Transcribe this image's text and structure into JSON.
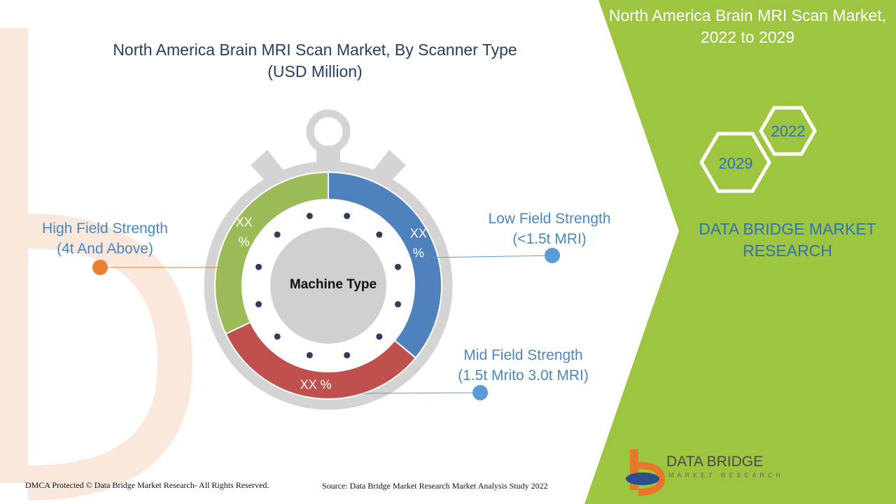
{
  "chart_title": "North America Brain MRI Scan Market, By Scanner Type (USD Million)",
  "panel": {
    "title": "North America Brain MRI Scan Market, 2022 to 2029",
    "year_start": "2022",
    "year_end": "2029",
    "brand": "DATA BRIDGE MARKET RESEARCH"
  },
  "footer": {
    "copyright": "DMCA Protected © Data Bridge Market Research- All Rights Reserved.",
    "source": "Source: Data Bridge Market Research Market Analysis Study 2022"
  },
  "logo": {
    "name": "DATA BRIDGE",
    "tagline": "MARKET RESEARCH"
  },
  "colors": {
    "panel_green": "#9dc53f",
    "low_field": "#4f81bd",
    "mid_field": "#c0504d",
    "high_field": "#9bbb59",
    "high_dot": "#ed7d31",
    "blue_dot": "#5b9bd5",
    "ring_gray": "#d4d4d4",
    "hub_gray": "#d0d0d0"
  },
  "chart_data": {
    "type": "pie",
    "center_label": "Machine Type",
    "segments": [
      {
        "name": "Low Field Strength\n(<1.5t MRI)",
        "label": "XX\n%",
        "fraction": 0.36,
        "color": "#4f81bd"
      },
      {
        "name": "Mid Field Strength\n(1.5t Mrito 3.0t MRI)",
        "label": "XX %",
        "fraction": 0.32,
        "color": "#c0504d"
      },
      {
        "name": "High Field Strength\n(4t And Above)",
        "label": "XX\n%",
        "fraction": 0.32,
        "color": "#9bbb59"
      }
    ]
  }
}
